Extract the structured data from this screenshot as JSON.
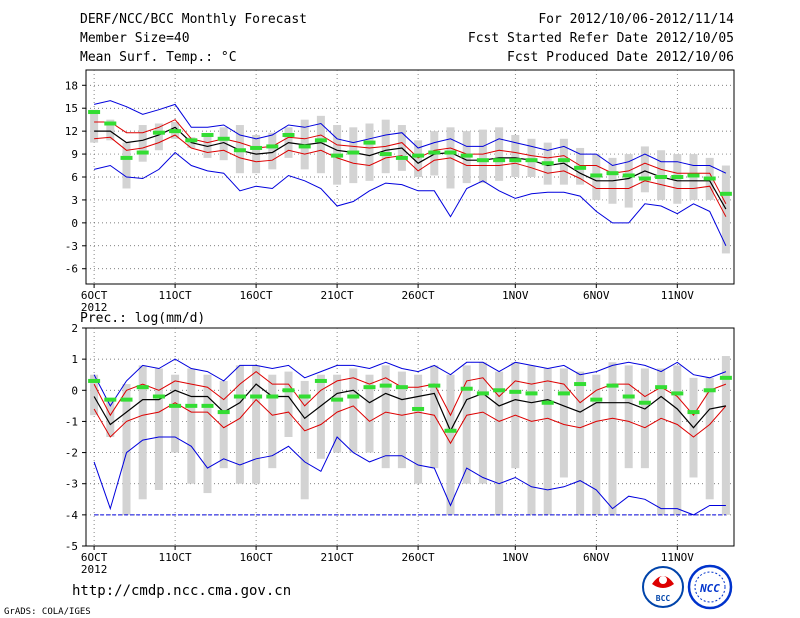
{
  "header": {
    "title": "DERF/NCC/BCC Monthly Forecast",
    "member_size": "Member Size=40",
    "variable": "Mean Surf. Temp.: °C",
    "period": "For 2012/10/06-2012/11/14",
    "fcst_started": "Fcst Started Refer Date 2012/10/05",
    "fcst_produced": "Fcst Produced Date 2012/10/06"
  },
  "footer": {
    "url": "http://cmdp.ncc.cma.gov.cn",
    "credit": "GrADS: COLA/IGES",
    "logo_bcc_text": "BCC",
    "logo_ncc_text": "NCC"
  },
  "colors": {
    "max_line": "#0000dd",
    "min_line": "#0000dd",
    "quartile_line": "#dd0000",
    "mean_line": "#000000",
    "box": "#d3d3d3",
    "observed": "#33dd33",
    "grid": "#555555"
  },
  "chart_data": [
    {
      "type": "line",
      "title": "Mean Surf. Temp.: °C",
      "ylabel": "°C",
      "ylim": [
        -8,
        20
      ],
      "yticks": [
        18,
        15,
        12,
        9,
        6,
        3,
        0,
        -3,
        -6
      ],
      "xlim": [
        0.5,
        40.5
      ],
      "xticks": [
        {
          "day": 1,
          "label": "6OCT"
        },
        {
          "day": 6,
          "label": "11OCT"
        },
        {
          "day": 11,
          "label": "16OCT"
        },
        {
          "day": 16,
          "label": "21OCT"
        },
        {
          "day": 21,
          "label": "26OCT"
        },
        {
          "day": 27,
          "label": "1NOV"
        },
        {
          "day": 32,
          "label": "6NOV"
        },
        {
          "day": 37,
          "label": "11NOV"
        }
      ],
      "year_label": "2012",
      "grid": true,
      "x": [
        1,
        2,
        3,
        4,
        5,
        6,
        7,
        8,
        9,
        10,
        11,
        12,
        13,
        14,
        15,
        16,
        17,
        18,
        19,
        20,
        21,
        22,
        23,
        24,
        25,
        26,
        27,
        28,
        29,
        30,
        31,
        32,
        33,
        34,
        35,
        36,
        37,
        38,
        39,
        40
      ],
      "series": [
        {
          "name": "max",
          "values": [
            15.5,
            16,
            15.2,
            14.2,
            14.8,
            15.5,
            12.5,
            12.5,
            12.8,
            11.5,
            11,
            11.5,
            12.8,
            12.5,
            13,
            11,
            10.5,
            11,
            11.5,
            11.8,
            9.8,
            10.5,
            11,
            10,
            10,
            11,
            10.5,
            10,
            9.5,
            10,
            9,
            9,
            7.5,
            8,
            9,
            8,
            8,
            7.5,
            7.5,
            6.5
          ]
        },
        {
          "name": "q3",
          "values": [
            13.2,
            13.2,
            11.8,
            11.8,
            12.5,
            13.5,
            11,
            10.5,
            11,
            10.5,
            9.8,
            10,
            11.2,
            11,
            11.5,
            10.2,
            10,
            9.8,
            10,
            10.5,
            8.5,
            9.5,
            9.8,
            9,
            9,
            9.5,
            9.2,
            8.8,
            8.5,
            8.8,
            7.5,
            7.5,
            6.5,
            6.8,
            7.8,
            7,
            6.5,
            6.5,
            6.5,
            2.5
          ]
        },
        {
          "name": "mean",
          "values": [
            12,
            12,
            10.5,
            10.8,
            11.5,
            12.5,
            10.5,
            10,
            10.5,
            9.5,
            9,
            9.2,
            10.5,
            10.2,
            10.5,
            9.5,
            9.2,
            8.8,
            9.5,
            9.8,
            7.8,
            9,
            9.2,
            8.2,
            8.2,
            8.5,
            8.5,
            8.2,
            7.5,
            7.8,
            6.5,
            5.5,
            5.5,
            5.8,
            6.8,
            6,
            5.5,
            5.5,
            5.5,
            1.8
          ]
        },
        {
          "name": "q1",
          "values": [
            11,
            11.2,
            9.5,
            9.8,
            10.5,
            11.5,
            9.8,
            9.2,
            9.5,
            8.5,
            8,
            8.2,
            9.5,
            9,
            9.5,
            8.5,
            7.8,
            7.5,
            8.5,
            8.8,
            6.8,
            8.2,
            8.5,
            7.5,
            7.5,
            7.5,
            7.8,
            7.2,
            6.5,
            6.8,
            5.8,
            4.5,
            4.5,
            4.5,
            5.5,
            5,
            4.5,
            4.5,
            4.8,
            0.8
          ]
        },
        {
          "name": "min",
          "values": [
            7,
            7.5,
            6,
            5.8,
            7,
            9.2,
            7.5,
            6.8,
            6.5,
            4.2,
            4.8,
            4.5,
            6.2,
            5.5,
            4.5,
            2.2,
            2.8,
            4.2,
            5.2,
            5,
            4.2,
            4.2,
            0.8,
            4.5,
            5.5,
            4.2,
            3.2,
            3.8,
            4,
            4,
            3.5,
            1.5,
            0,
            0,
            2.5,
            2.2,
            1.2,
            2.5,
            1.5,
            -3
          ]
        },
        {
          "name": "box_high",
          "values": [
            14.8,
            13.5,
            10.5,
            12.8,
            13,
            13.2,
            11.2,
            11.5,
            12.5,
            12.8,
            11.5,
            11.8,
            12.5,
            13.5,
            14,
            12.8,
            12.5,
            13,
            13.5,
            12.8,
            10.8,
            12,
            12.5,
            12,
            12.2,
            12.5,
            11.5,
            11,
            10.5,
            11,
            9.8,
            9,
            8.5,
            9,
            10,
            9.5,
            9,
            9,
            8.5,
            7.5
          ]
        },
        {
          "name": "box_low",
          "values": [
            10.5,
            10.8,
            4.5,
            8,
            9.5,
            11,
            9.8,
            8.5,
            8.2,
            6.5,
            6.5,
            7,
            8.5,
            7,
            6.5,
            5,
            5.2,
            5.5,
            6.5,
            6.8,
            6,
            6.2,
            4.5,
            5.2,
            5.2,
            5.5,
            6,
            6,
            5,
            5,
            5,
            3,
            2.5,
            2,
            4,
            3,
            2.5,
            3,
            3,
            -4
          ]
        },
        {
          "name": "observed",
          "values": [
            14.5,
            13,
            8.5,
            9.2,
            11.8,
            12,
            10.8,
            11.5,
            11,
            9.5,
            9.8,
            10,
            11.5,
            10,
            10.8,
            8.8,
            9.2,
            10.5,
            9,
            8.5,
            8.8,
            9.2,
            9.2,
            8.8,
            8.2,
            8.2,
            8.2,
            8.2,
            7.8,
            8.2,
            7.2,
            6.2,
            6.5,
            6.2,
            5.8,
            6,
            6,
            6.2,
            5.8,
            3.8
          ]
        }
      ]
    },
    {
      "type": "line",
      "title": "Prec.: log(mm/d)",
      "ylabel": "log(mm/d)",
      "ylim": [
        -5,
        2
      ],
      "yticks": [
        2,
        1,
        0,
        -1,
        -2,
        -3,
        -4,
        -5
      ],
      "xlim": [
        0.5,
        40.5
      ],
      "xticks": [
        {
          "day": 1,
          "label": "6OCT"
        },
        {
          "day": 6,
          "label": "11OCT"
        },
        {
          "day": 11,
          "label": "16OCT"
        },
        {
          "day": 16,
          "label": "21OCT"
        },
        {
          "day": 21,
          "label": "26OCT"
        },
        {
          "day": 27,
          "label": "1NOV"
        },
        {
          "day": 32,
          "label": "6NOV"
        },
        {
          "day": 37,
          "label": "11NOV"
        }
      ],
      "year_label": "2012",
      "grid": true,
      "x": [
        1,
        2,
        3,
        4,
        5,
        6,
        7,
        8,
        9,
        10,
        11,
        12,
        13,
        14,
        15,
        16,
        17,
        18,
        19,
        20,
        21,
        22,
        23,
        24,
        25,
        26,
        27,
        28,
        29,
        30,
        31,
        32,
        33,
        34,
        35,
        36,
        37,
        38,
        39,
        40
      ],
      "series": [
        {
          "name": "max",
          "values": [
            0.5,
            -0.5,
            0.3,
            0.8,
            0.7,
            1,
            0.7,
            0.6,
            0.3,
            0.8,
            0.8,
            0.7,
            0.8,
            0.4,
            0.6,
            0.8,
            0.8,
            0.7,
            0.9,
            0.7,
            0.6,
            0.8,
            0.5,
            0.9,
            0.9,
            0.6,
            0.9,
            0.8,
            0.7,
            0.8,
            0.5,
            0.6,
            0.8,
            0.9,
            0.8,
            0.6,
            0.9,
            0.5,
            0.4,
            0.6
          ]
        },
        {
          "name": "q3",
          "values": [
            0.2,
            -0.8,
            0,
            0.2,
            0,
            0.3,
            0.2,
            0.1,
            -0.3,
            0.2,
            0.6,
            0.2,
            0.2,
            -0.5,
            0,
            0.3,
            0.4,
            0.2,
            0.4,
            0.1,
            0.1,
            0.2,
            -0.8,
            0.3,
            0.4,
            -0.2,
            0.3,
            0.2,
            0.3,
            0.2,
            -0.4,
            0,
            0.2,
            0.2,
            -0.2,
            0.1,
            -0.2,
            -0.8,
            0,
            0.2
          ]
        },
        {
          "name": "mean",
          "values": [
            -0.2,
            -1.1,
            -0.7,
            -0.3,
            -0.3,
            0,
            -0.2,
            -0.2,
            -0.7,
            -0.4,
            0.2,
            -0.2,
            -0.2,
            -0.9,
            -0.5,
            -0.1,
            0,
            -0.4,
            -0.1,
            -0.3,
            -0.2,
            -0.1,
            -1.3,
            -0.3,
            -0.1,
            -0.5,
            -0.3,
            -0.4,
            -0.3,
            -0.5,
            -0.7,
            -0.4,
            -0.4,
            -0.4,
            -0.6,
            -0.2,
            -0.6,
            -1.2,
            -0.6,
            -0.5
          ]
        },
        {
          "name": "q1",
          "values": [
            -0.6,
            -1.5,
            -1,
            -0.8,
            -0.7,
            -0.4,
            -0.7,
            -0.7,
            -1.2,
            -0.9,
            -0.3,
            -0.8,
            -0.7,
            -1.3,
            -1.1,
            -0.7,
            -0.5,
            -1,
            -0.7,
            -0.8,
            -0.7,
            -0.8,
            -1.7,
            -0.8,
            -0.7,
            -1,
            -0.8,
            -1,
            -0.9,
            -1.1,
            -1.2,
            -1,
            -0.9,
            -1,
            -1.2,
            -0.9,
            -1.1,
            -1.5,
            -1.1,
            -0.5
          ]
        },
        {
          "name": "min",
          "values": [
            -2.3,
            -3.8,
            -2,
            -1.6,
            -1.5,
            -1.5,
            -1.8,
            -2.5,
            -2.2,
            -2.4,
            -2.2,
            -2.1,
            -1.8,
            -2.3,
            -2.6,
            -1.5,
            -2,
            -2.3,
            -2.1,
            -2.1,
            -2.4,
            -2.5,
            -3.7,
            -2.5,
            -2.8,
            -3,
            -2.8,
            -3.1,
            -3.2,
            -3.1,
            -2.9,
            -3.2,
            -3.8,
            -3.4,
            -3.5,
            -3.8,
            -3.8,
            -4,
            -3.7,
            -3.7
          ]
        },
        {
          "name": "lower_bound",
          "values": [
            -4,
            -4,
            -4,
            -4,
            -4,
            -4,
            -4,
            -4,
            -4,
            -4,
            -4,
            -4,
            -4,
            -4,
            -4,
            -4,
            -4,
            -4,
            -4,
            -4,
            -4,
            -4,
            -4,
            -4,
            -4,
            -4,
            -4,
            -4,
            -4,
            -4,
            -4,
            -4,
            -4,
            -4,
            -4,
            -4,
            -4,
            -4,
            -4,
            -4
          ]
        },
        {
          "name": "box_high",
          "values": [
            0.5,
            -0.3,
            0.2,
            0.8,
            0.7,
            0.5,
            0.7,
            0.5,
            0.3,
            0.8,
            0.8,
            0.5,
            0.6,
            0.3,
            0.5,
            0.5,
            0.7,
            0.5,
            0.8,
            0.6,
            0.5,
            0.8,
            0.5,
            0.8,
            0.9,
            0.6,
            0.9,
            0.8,
            0.7,
            0.7,
            0.6,
            0.5,
            0.9,
            0.8,
            0.7,
            0.7,
            0.8,
            0.4,
            0.4,
            1.1
          ]
        },
        {
          "name": "box_low",
          "values": [
            -0.8,
            -1.5,
            -4,
            -3.5,
            -3.2,
            -2,
            -3,
            -3.3,
            -2.5,
            -3,
            -3,
            -2.5,
            -1.5,
            -3.5,
            -2.2,
            -2,
            -2,
            -2,
            -2.5,
            -2.5,
            -3,
            -2.5,
            -4,
            -3,
            -3,
            -4,
            -2.5,
            -4,
            -4,
            -2.8,
            -4,
            -4,
            -4,
            -2.5,
            -2.5,
            -4,
            -4,
            -2.8,
            -3.5,
            -4
          ]
        },
        {
          "name": "observed",
          "values": [
            0.3,
            -0.3,
            -0.3,
            0.1,
            -0.2,
            -0.5,
            -0.5,
            -0.5,
            -0.7,
            -0.2,
            -0.2,
            -0.2,
            0,
            -0.2,
            0.3,
            -0.3,
            -0.2,
            0.1,
            0.15,
            0.1,
            -0.6,
            0.15,
            -1.3,
            0.05,
            -0.1,
            0,
            -0.05,
            -0.1,
            -0.4,
            -0.1,
            0.2,
            -0.3,
            0.15,
            -0.2,
            -0.4,
            0.1,
            -0.1,
            -0.7,
            0,
            0.4
          ]
        }
      ]
    }
  ]
}
